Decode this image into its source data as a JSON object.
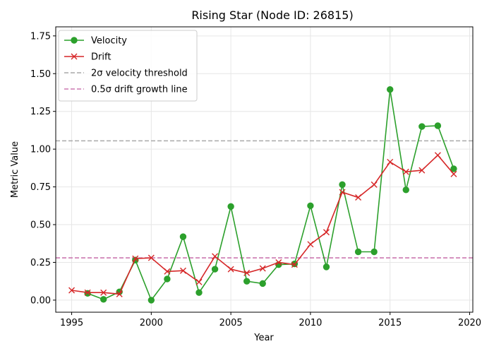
{
  "chart_data": {
    "type": "line",
    "title": "Rising Star (Node ID: 26815)",
    "xlabel": "Year",
    "ylabel": "Metric Value",
    "xlim": [
      1994,
      2020.2
    ],
    "ylim": [
      -0.08,
      1.81
    ],
    "xticks": [
      1995,
      2000,
      2005,
      2010,
      2015,
      2020
    ],
    "yticks": [
      0.0,
      0.25,
      0.5,
      0.75,
      1.0,
      1.25,
      1.5,
      1.75
    ],
    "ytick_labels": [
      "0.00",
      "0.25",
      "0.50",
      "0.75",
      "1.00",
      "1.25",
      "1.50",
      "1.75"
    ],
    "grid": true,
    "legend_position": "top-left",
    "series": [
      {
        "name": "Velocity",
        "color": "#2ca02c",
        "marker": "circle",
        "linestyle": "solid",
        "x": [
          1996,
          1997,
          1998,
          1999,
          2000,
          2001,
          2002,
          2003,
          2004,
          2005,
          2006,
          2007,
          2008,
          2009,
          2010,
          2011,
          2012,
          2013,
          2014,
          2015,
          2016,
          2017,
          2018,
          2019
        ],
        "y": [
          0.045,
          0.005,
          0.055,
          0.265,
          0.0,
          0.14,
          0.42,
          0.05,
          0.205,
          0.62,
          0.125,
          0.11,
          0.235,
          0.24,
          0.625,
          0.22,
          0.765,
          0.32,
          0.32,
          1.395,
          0.73,
          1.15,
          1.155,
          0.87
        ]
      },
      {
        "name": "Drift",
        "color": "#d62728",
        "marker": "x",
        "linestyle": "solid",
        "x": [
          1995,
          1996,
          1997,
          1998,
          1999,
          2000,
          2001,
          2002,
          2003,
          2004,
          2005,
          2006,
          2007,
          2008,
          2009,
          2010,
          2011,
          2012,
          2013,
          2014,
          2015,
          2016,
          2017,
          2018,
          2019
        ],
        "y": [
          0.065,
          0.05,
          0.05,
          0.04,
          0.275,
          0.28,
          0.19,
          0.195,
          0.12,
          0.29,
          0.205,
          0.18,
          0.21,
          0.25,
          0.235,
          0.37,
          0.45,
          0.715,
          0.68,
          0.765,
          0.915,
          0.85,
          0.86,
          0.96,
          0.835
        ]
      }
    ],
    "reference_lines": [
      {
        "name": "2σ velocity threshold",
        "y": 1.055,
        "color": "#aaaaaa",
        "linestyle": "dashed"
      },
      {
        "name": "0.5σ drift growth line",
        "y": 0.28,
        "color": "#cc79b0",
        "linestyle": "dashed"
      }
    ]
  }
}
